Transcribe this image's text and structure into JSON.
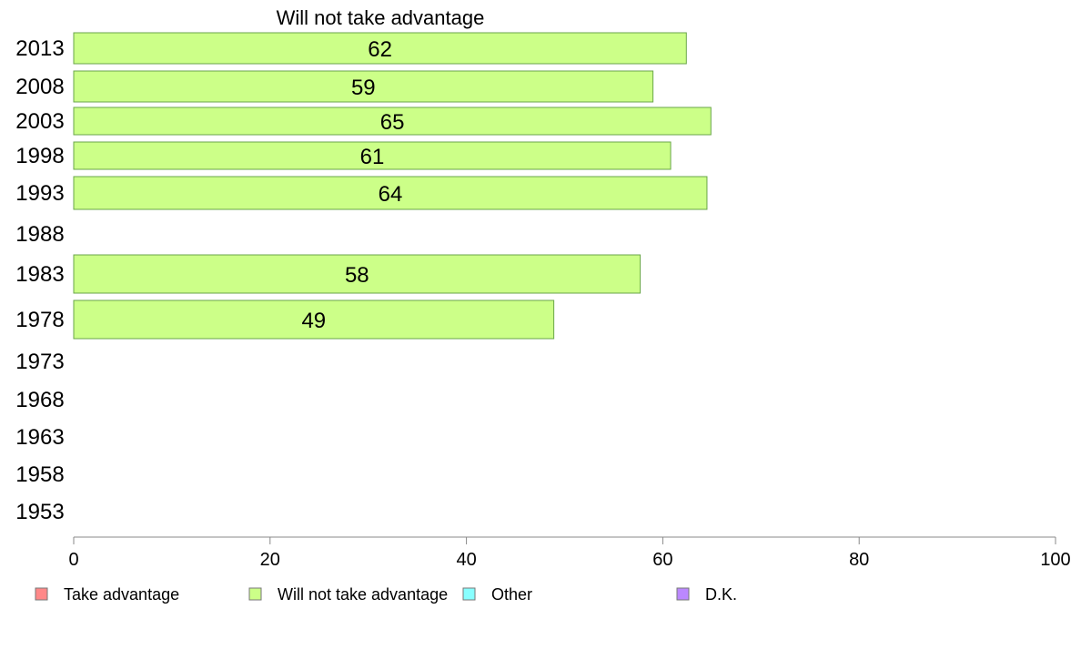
{
  "chart_data": {
    "type": "bar",
    "orientation": "horizontal",
    "title": "Will not take advantage",
    "categories": [
      "2013",
      "2008",
      "2003",
      "1998",
      "1993",
      "1988",
      "1983",
      "1978",
      "1973",
      "1968",
      "1963",
      "1958",
      "1953"
    ],
    "series": [
      {
        "name": "Will not take advantage",
        "color": "#ccff88",
        "values": [
          62,
          59,
          65,
          61,
          64,
          null,
          58,
          49,
          null,
          null,
          null,
          null,
          null
        ],
        "fill_values": [
          62.4,
          59.0,
          64.9,
          60.8,
          64.5,
          null,
          57.7,
          48.9,
          null,
          null,
          null,
          null,
          null
        ]
      }
    ],
    "xlim": [
      0,
      100
    ],
    "xticks": [
      0,
      20,
      40,
      60,
      80,
      100
    ],
    "grid": false,
    "legend": {
      "placement": "bottom",
      "entries": [
        {
          "label": "Take advantage",
          "color": "#ff8888"
        },
        {
          "label": "Will not take advantage",
          "color": "#ccff88"
        },
        {
          "label": "Other",
          "color": "#88ffff"
        },
        {
          "label": "D.K.",
          "color": "#bb88ff"
        }
      ]
    }
  }
}
